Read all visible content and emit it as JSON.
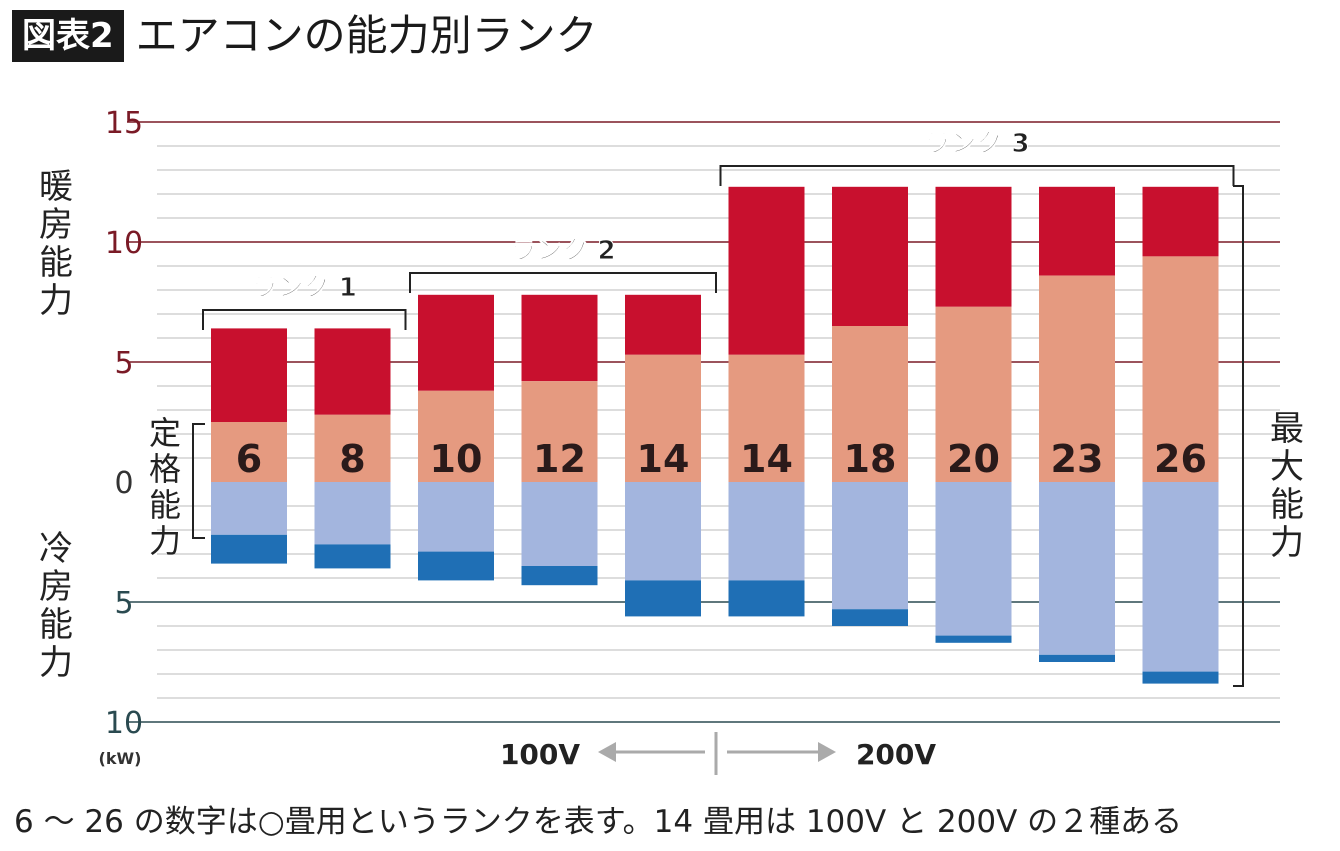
{
  "header": {
    "badge": "図表2",
    "title": "エアコンの能力別ランク"
  },
  "footnote": "6 ～ 26 の数字は○畳用というランクを表す。14 畳用は 100V と 200V の２種ある",
  "chart_data": {
    "type": "bar",
    "categories": [
      "6",
      "8",
      "10",
      "12",
      "14",
      "14",
      "18",
      "20",
      "23",
      "26"
    ],
    "series": [
      {
        "name": "暖房定格能力",
        "direction": "up",
        "values": [
          2.5,
          2.8,
          3.8,
          4.2,
          5.3,
          5.3,
          6.5,
          7.3,
          8.6,
          9.4
        ]
      },
      {
        "name": "暖房最大能力",
        "direction": "up",
        "values": [
          6.4,
          6.4,
          7.8,
          7.8,
          7.8,
          12.3,
          12.3,
          12.3,
          12.3,
          12.3
        ]
      },
      {
        "name": "冷房定格能力",
        "direction": "down",
        "values": [
          2.2,
          2.6,
          2.9,
          3.5,
          4.1,
          4.1,
          5.3,
          6.4,
          7.2,
          7.9
        ]
      },
      {
        "name": "冷房最大能力",
        "direction": "down",
        "values": [
          3.4,
          3.6,
          4.1,
          4.3,
          5.6,
          5.6,
          6.0,
          6.7,
          7.5,
          8.4
        ]
      }
    ],
    "ylim_up": [
      0,
      15
    ],
    "ylim_down": [
      0,
      10
    ],
    "yticks_up": [
      "0",
      "5",
      "10",
      "15"
    ],
    "yticks_down": [
      "5",
      "10"
    ],
    "unit": "(kW)",
    "axis_label_heating": "暖房能力",
    "axis_label_cooling": "冷房能力",
    "axis_label_rated": "定格能力",
    "axis_label_max": "最大能力",
    "ranks": [
      {
        "label": "ランク 1",
        "from": 0,
        "to": 1
      },
      {
        "label": "ランク 2",
        "from": 2,
        "to": 4
      },
      {
        "label": "ランク 3",
        "from": 5,
        "to": 9
      }
    ],
    "voltage_left": "100V",
    "voltage_right": "200V",
    "colors": {
      "heating_max": "#c8102e",
      "heating_rated": "#e59a80",
      "cooling_rated": "#a3b5de",
      "cooling_max": "#1f6fb5",
      "major_grid": "#7a1a26",
      "minor_grid": "#bbbbbb",
      "arrow": "#aaaaaa"
    }
  }
}
